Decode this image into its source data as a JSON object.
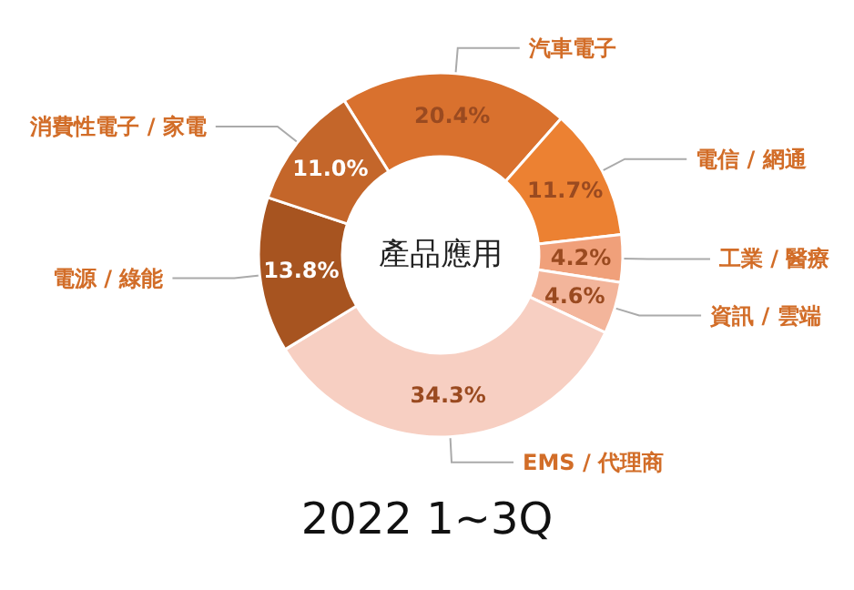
{
  "chart_data": {
    "type": "donut",
    "title": "2022 1~3Q",
    "subtitle": "產品應用",
    "categories": [
      "汽車電子",
      "電信 / 網通",
      "工業 / 醫療",
      "資訊 / 雲端",
      "EMS / 代理商",
      "電源 / 綠能",
      "消費性電子 / 家電"
    ],
    "values": [
      20.4,
      11.7,
      4.2,
      4.6,
      34.3,
      13.8,
      11.0
    ],
    "value_labels": [
      "20.4%",
      "11.7%",
      "4.2%",
      "4.6%",
      "34.3%",
      "13.8%",
      "11.0%"
    ],
    "colors": [
      "#d9712e",
      "#ec8132",
      "#f0a07a",
      "#f3b59b",
      "#f7cfc2",
      "#a75420",
      "#c4662a"
    ],
    "legend": false
  }
}
